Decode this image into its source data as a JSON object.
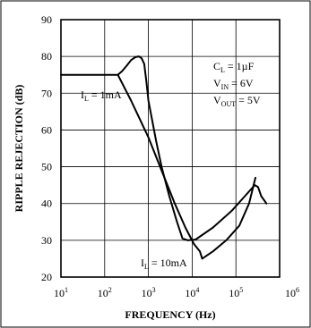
{
  "chart_data": {
    "type": "line",
    "title": "",
    "xlabel": "FREQUENCY (Hz)",
    "ylabel": "RIPPLE REJECTION (dB)",
    "xscale": "log",
    "xlim": [
      10,
      1000000
    ],
    "ylim": [
      20,
      90
    ],
    "grid": true,
    "x_tick_labels": [
      {
        "base": "10",
        "exp": "1"
      },
      {
        "base": "10",
        "exp": "2"
      },
      {
        "base": "10",
        "exp": "3"
      },
      {
        "base": "10",
        "exp": "4"
      },
      {
        "base": "10",
        "exp": "5"
      },
      {
        "base": "10",
        "exp": "6"
      }
    ],
    "y_ticks": [
      20,
      30,
      40,
      50,
      60,
      70,
      80,
      90
    ],
    "series": [
      {
        "name": "IL = 1mA",
        "points": [
          [
            10,
            75
          ],
          [
            200,
            75
          ],
          [
            250,
            76
          ],
          [
            320,
            77.5
          ],
          [
            400,
            79
          ],
          [
            500,
            79.8
          ],
          [
            600,
            80
          ],
          [
            700,
            79.5
          ],
          [
            800,
            78
          ],
          [
            900,
            73
          ],
          [
            1000,
            68
          ],
          [
            1500,
            57
          ],
          [
            2000,
            50
          ],
          [
            3000,
            42
          ],
          [
            4500,
            35
          ],
          [
            6000,
            30.5
          ],
          [
            8000,
            30
          ],
          [
            12000,
            30.2
          ],
          [
            30000,
            33.5
          ],
          [
            80000,
            38
          ],
          [
            160000,
            42
          ],
          [
            270000,
            45
          ],
          [
            320000,
            44.5
          ],
          [
            380000,
            42
          ],
          [
            500000,
            40
          ]
        ]
      },
      {
        "name": "IL = 10mA",
        "points": [
          [
            200,
            75
          ],
          [
            400,
            68
          ],
          [
            1000,
            58
          ],
          [
            2000,
            49
          ],
          [
            4000,
            40
          ],
          [
            7000,
            33.5
          ],
          [
            11000,
            29
          ],
          [
            15000,
            27
          ],
          [
            17000,
            25
          ],
          [
            30000,
            27
          ],
          [
            60000,
            30
          ],
          [
            120000,
            34
          ],
          [
            200000,
            40
          ],
          [
            280000,
            47
          ]
        ]
      }
    ],
    "annotations": {
      "il_1ma": {
        "prefix": "I",
        "sub": "L",
        "value": " = 1mA"
      },
      "il_10ma": {
        "prefix": "I",
        "sub": "L",
        "value": " = 10mA"
      },
      "cl": {
        "prefix": "C",
        "sub": "L",
        "value": " = 1µF"
      },
      "vin": {
        "prefix": "V",
        "sub": "IN",
        "value": " = 6V"
      },
      "vout": {
        "prefix": "V",
        "sub": "OUT",
        "value": " = 5V"
      }
    }
  }
}
